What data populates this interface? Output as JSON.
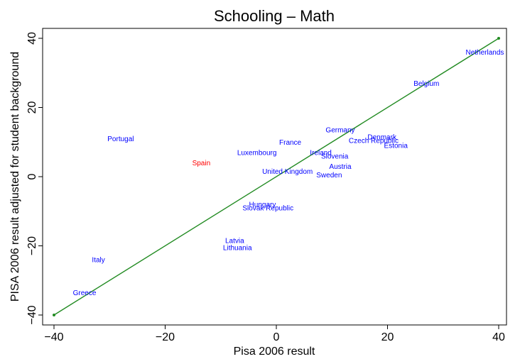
{
  "chart_data": {
    "type": "scatter",
    "title": "Schooling – Math",
    "xlabel": "Pisa 2006 result",
    "ylabel": "PISA 2006 result adjusted for student background",
    "xlim": [
      -42,
      42
    ],
    "ylim": [
      -42,
      42
    ],
    "x_ticks": [
      -40,
      -20,
      0,
      20,
      40
    ],
    "y_ticks": [
      -40,
      -20,
      0,
      20,
      40
    ],
    "x_tick_labels": [
      "−40",
      "−20",
      "0",
      "20",
      "40"
    ],
    "y_tick_labels": [
      "−40",
      "−20",
      "0",
      "20",
      "40"
    ],
    "grid": false,
    "reference_line": {
      "x": [
        -40,
        40
      ],
      "y": [
        -40,
        40
      ],
      "color": "#228B22"
    },
    "label_color": "#0000ff",
    "highlight_color": "#ff0000",
    "points": [
      {
        "label": "Netherlands",
        "x": 37.5,
        "y": 36.0
      },
      {
        "label": "Belgium",
        "x": 27.0,
        "y": 27.0
      },
      {
        "label": "Germany",
        "x": 11.5,
        "y": 13.5
      },
      {
        "label": "Denmark",
        "x": 19.0,
        "y": 11.5
      },
      {
        "label": "Czech Republic",
        "x": 17.5,
        "y": 10.5
      },
      {
        "label": "Estonia",
        "x": 21.5,
        "y": 9.0
      },
      {
        "label": "Portugal",
        "x": -28.0,
        "y": 11.0
      },
      {
        "label": "France",
        "x": 2.5,
        "y": 10.0
      },
      {
        "label": "Luxembourg",
        "x": -3.5,
        "y": 7.0
      },
      {
        "label": "Ireland",
        "x": 8.0,
        "y": 7.0
      },
      {
        "label": "Slovenia",
        "x": 10.5,
        "y": 6.0
      },
      {
        "label": "Spain",
        "x": -13.5,
        "y": 4.0,
        "highlight": true
      },
      {
        "label": "Austria",
        "x": 11.5,
        "y": 3.0
      },
      {
        "label": "United Kingdom",
        "x": 2.0,
        "y": 1.5
      },
      {
        "label": "Sweden",
        "x": 9.5,
        "y": 0.5
      },
      {
        "label": "Hungary",
        "x": -2.5,
        "y": -8.0
      },
      {
        "label": "Slovak Republic",
        "x": -1.5,
        "y": -9.0
      },
      {
        "label": "Latvia",
        "x": -7.5,
        "y": -18.5
      },
      {
        "label": "Lithuania",
        "x": -7.0,
        "y": -20.5
      },
      {
        "label": "Italy",
        "x": -32.0,
        "y": -24.0
      },
      {
        "label": "Greece",
        "x": -34.5,
        "y": -33.5
      }
    ]
  }
}
